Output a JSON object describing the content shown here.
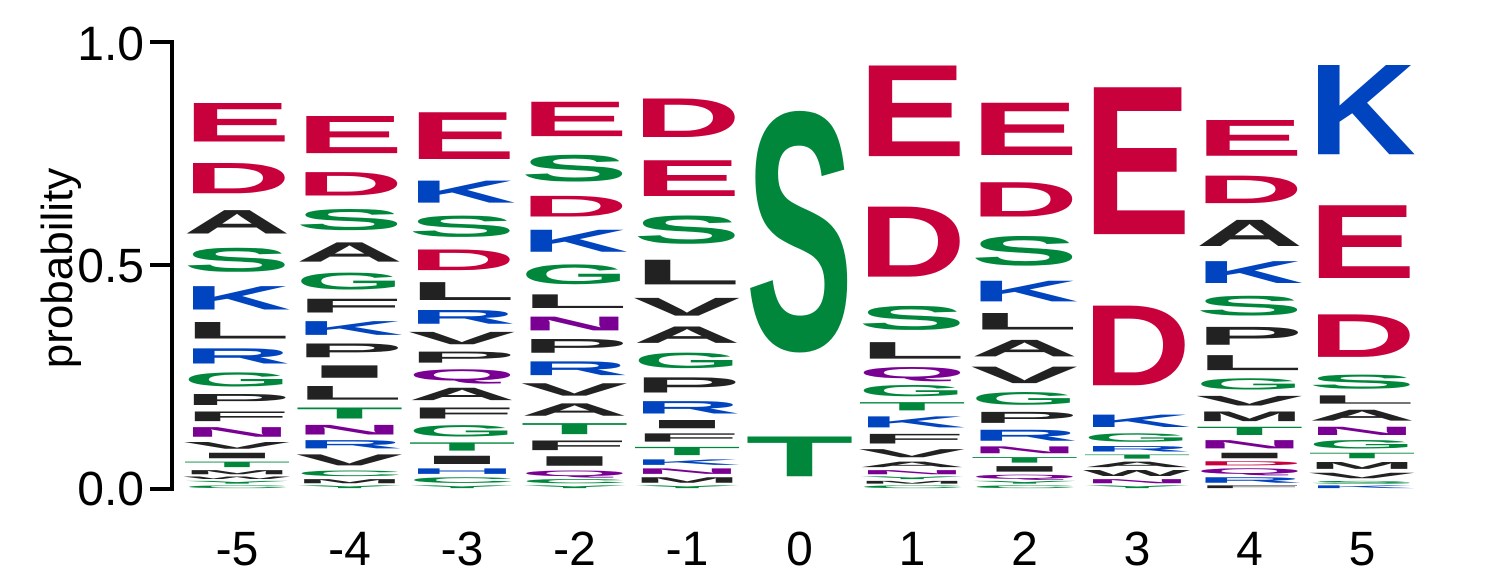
{
  "chart_data": {
    "type": "sequence-logo",
    "ylabel": "probability",
    "ylim": [
      0.0,
      1.0
    ],
    "yticks": [
      "0.0",
      "0.5",
      "1.0"
    ],
    "yticks_values": [
      0.0,
      0.5,
      1.0
    ],
    "categories": [
      "-5",
      "-4",
      "-3",
      "-2",
      "-1",
      "0",
      "1",
      "2",
      "3",
      "4",
      "5"
    ],
    "colors": {
      "acidic": "#c8003c",
      "polar": "#00873c",
      "basic": "#0044c0",
      "hydrophobic": "#222222",
      "amide": "#7a0094"
    },
    "residue_class": {
      "D": "acidic",
      "E": "acidic",
      "S": "polar",
      "T": "polar",
      "G": "polar",
      "Y": "polar",
      "C": "polar",
      "K": "basic",
      "R": "basic",
      "H": "basic",
      "A": "hydrophobic",
      "V": "hydrophobic",
      "L": "hydrophobic",
      "I": "hydrophobic",
      "P": "hydrophobic",
      "F": "hydrophobic",
      "M": "hydrophobic",
      "W": "hydrophobic",
      "N": "amide",
      "Q": "amide"
    },
    "positions": [
      {
        "pos": "-5",
        "letters": [
          {
            "l": "C",
            "p": 0.01
          },
          {
            "l": "Y",
            "p": 0.01
          },
          {
            "l": "W",
            "p": 0.01
          },
          {
            "l": "M",
            "p": 0.015
          },
          {
            "l": "T",
            "p": 0.02
          },
          {
            "l": "I",
            "p": 0.02
          },
          {
            "l": "V",
            "p": 0.025
          },
          {
            "l": "N",
            "p": 0.035
          },
          {
            "l": "F",
            "p": 0.035
          },
          {
            "l": "P",
            "p": 0.04
          },
          {
            "l": "G",
            "p": 0.05
          },
          {
            "l": "R",
            "p": 0.055
          },
          {
            "l": "L",
            "p": 0.06
          },
          {
            "l": "K",
            "p": 0.085
          },
          {
            "l": "S",
            "p": 0.085
          },
          {
            "l": "A",
            "p": 0.085
          },
          {
            "l": "D",
            "p": 0.11
          },
          {
            "l": "E",
            "p": 0.14
          }
        ]
      },
      {
        "pos": "-4",
        "letters": [
          {
            "l": "Y",
            "p": 0.01
          },
          {
            "l": "M",
            "p": 0.015
          },
          {
            "l": "C",
            "p": 0.02
          },
          {
            "l": "V",
            "p": 0.04
          },
          {
            "l": "R",
            "p": 0.03
          },
          {
            "l": "N",
            "p": 0.035
          },
          {
            "l": "T",
            "p": 0.04
          },
          {
            "l": "L",
            "p": 0.05
          },
          {
            "l": "I",
            "p": 0.045
          },
          {
            "l": "P",
            "p": 0.05
          },
          {
            "l": "K",
            "p": 0.05
          },
          {
            "l": "F",
            "p": 0.05
          },
          {
            "l": "G",
            "p": 0.06
          },
          {
            "l": "A",
            "p": 0.07
          },
          {
            "l": "S",
            "p": 0.075
          },
          {
            "l": "D",
            "p": 0.085
          },
          {
            "l": "E",
            "p": 0.135
          }
        ]
      },
      {
        "pos": "-3",
        "letters": [
          {
            "l": "Y",
            "p": 0.01
          },
          {
            "l": "C",
            "p": 0.02
          },
          {
            "l": "H",
            "p": 0.02
          },
          {
            "l": "I",
            "p": 0.03
          },
          {
            "l": "T",
            "p": 0.03
          },
          {
            "l": "G",
            "p": 0.04
          },
          {
            "l": "F",
            "p": 0.04
          },
          {
            "l": "A",
            "p": 0.045
          },
          {
            "l": "Q",
            "p": 0.04
          },
          {
            "l": "P",
            "p": 0.04
          },
          {
            "l": "V",
            "p": 0.045
          },
          {
            "l": "R",
            "p": 0.05
          },
          {
            "l": "L",
            "p": 0.065
          },
          {
            "l": "D",
            "p": 0.075
          },
          {
            "l": "S",
            "p": 0.075
          },
          {
            "l": "K",
            "p": 0.08
          },
          {
            "l": "E",
            "p": 0.17
          }
        ]
      },
      {
        "pos": "-2",
        "letters": [
          {
            "l": "Y",
            "p": 0.01
          },
          {
            "l": "C",
            "p": 0.015
          },
          {
            "l": "Q",
            "p": 0.02
          },
          {
            "l": "I",
            "p": 0.035
          },
          {
            "l": "F",
            "p": 0.035
          },
          {
            "l": "T",
            "p": 0.04
          },
          {
            "l": "A",
            "p": 0.045
          },
          {
            "l": "V",
            "p": 0.045
          },
          {
            "l": "R",
            "p": 0.05
          },
          {
            "l": "P",
            "p": 0.05
          },
          {
            "l": "N",
            "p": 0.05
          },
          {
            "l": "L",
            "p": 0.05
          },
          {
            "l": "G",
            "p": 0.07
          },
          {
            "l": "K",
            "p": 0.08
          },
          {
            "l": "D",
            "p": 0.075
          },
          {
            "l": "S",
            "p": 0.095
          },
          {
            "l": "E",
            "p": 0.125
          }
        ]
      },
      {
        "pos": "-1",
        "letters": [
          {
            "l": "Y",
            "p": 0.01
          },
          {
            "l": "M",
            "p": 0.02
          },
          {
            "l": "N",
            "p": 0.02
          },
          {
            "l": "K",
            "p": 0.02
          },
          {
            "l": "T",
            "p": 0.03
          },
          {
            "l": "F",
            "p": 0.03
          },
          {
            "l": "I",
            "p": 0.03
          },
          {
            "l": "R",
            "p": 0.045
          },
          {
            "l": "P",
            "p": 0.055
          },
          {
            "l": "G",
            "p": 0.055
          },
          {
            "l": "A",
            "p": 0.06
          },
          {
            "l": "V",
            "p": 0.065
          },
          {
            "l": "L",
            "p": 0.09
          },
          {
            "l": "S",
            "p": 0.1
          },
          {
            "l": "E",
            "p": 0.13
          },
          {
            "l": "D",
            "p": 0.14
          }
        ]
      },
      {
        "pos": "0",
        "letters": [
          {
            "l": "T",
            "p": 0.145
          },
          {
            "l": "S",
            "p": 0.855
          }
        ]
      },
      {
        "pos": "1",
        "letters": [
          {
            "l": "C",
            "p": 0.01
          },
          {
            "l": "M",
            "p": 0.01
          },
          {
            "l": "Y",
            "p": 0.01
          },
          {
            "l": "N",
            "p": 0.015
          },
          {
            "l": "A",
            "p": 0.02
          },
          {
            "l": "V",
            "p": 0.03
          },
          {
            "l": "F",
            "p": 0.035
          },
          {
            "l": "K",
            "p": 0.04
          },
          {
            "l": "T",
            "p": 0.03
          },
          {
            "l": "G",
            "p": 0.04
          },
          {
            "l": "Q",
            "p": 0.04
          },
          {
            "l": "L",
            "p": 0.06
          },
          {
            "l": "S",
            "p": 0.085
          },
          {
            "l": "D",
            "p": 0.255
          },
          {
            "l": "E",
            "p": 0.33
          }
        ]
      },
      {
        "pos": "2",
        "letters": [
          {
            "l": "C",
            "p": 0.01
          },
          {
            "l": "Y",
            "p": 0.01
          },
          {
            "l": "Q",
            "p": 0.015
          },
          {
            "l": "I",
            "p": 0.02
          },
          {
            "l": "T",
            "p": 0.02
          },
          {
            "l": "N",
            "p": 0.025
          },
          {
            "l": "R",
            "p": 0.04
          },
          {
            "l": "P",
            "p": 0.04
          },
          {
            "l": "G",
            "p": 0.045
          },
          {
            "l": "V",
            "p": 0.06
          },
          {
            "l": "A",
            "p": 0.06
          },
          {
            "l": "L",
            "p": 0.06
          },
          {
            "l": "K",
            "p": 0.075
          },
          {
            "l": "S",
            "p": 0.105
          },
          {
            "l": "D",
            "p": 0.125
          },
          {
            "l": "E",
            "p": 0.19
          }
        ]
      },
      {
        "pos": "3",
        "letters": [
          {
            "l": "Y",
            "p": 0.01
          },
          {
            "l": "N",
            "p": 0.015
          },
          {
            "l": "W",
            "p": 0.02
          },
          {
            "l": "A",
            "p": 0.02
          },
          {
            "l": "T",
            "p": 0.015
          },
          {
            "l": "R",
            "p": 0.02
          },
          {
            "l": "G",
            "p": 0.03
          },
          {
            "l": "K",
            "p": 0.045
          },
          {
            "l": "D",
            "p": 0.29
          },
          {
            "l": "E",
            "p": 0.535
          }
        ]
      },
      {
        "pos": "4",
        "letters": [
          {
            "l": "F",
            "p": 0.01
          },
          {
            "l": "R",
            "p": 0.02
          },
          {
            "l": "Q",
            "p": 0.02
          },
          {
            "l": "D",
            "p": 0.015
          },
          {
            "l": "I",
            "p": 0.02
          },
          {
            "l": "N",
            "p": 0.03
          },
          {
            "l": "T",
            "p": 0.03
          },
          {
            "l": "M",
            "p": 0.035
          },
          {
            "l": "V",
            "p": 0.035
          },
          {
            "l": "G",
            "p": 0.04
          },
          {
            "l": "L",
            "p": 0.055
          },
          {
            "l": "P",
            "p": 0.065
          },
          {
            "l": "S",
            "p": 0.07
          },
          {
            "l": "K",
            "p": 0.08
          },
          {
            "l": "A",
            "p": 0.095
          },
          {
            "l": "D",
            "p": 0.1
          },
          {
            "l": "E",
            "p": 0.13
          }
        ]
      },
      {
        "pos": "5",
        "letters": [
          {
            "l": "K",
            "p": 0.01
          },
          {
            "l": "S",
            "p": 0.01
          },
          {
            "l": "V",
            "p": 0.02
          },
          {
            "l": "M",
            "p": 0.025
          },
          {
            "l": "T",
            "p": 0.02
          },
          {
            "l": "G",
            "p": 0.03
          },
          {
            "l": "N",
            "p": 0.03
          },
          {
            "l": "A",
            "p": 0.04
          },
          {
            "l": "L",
            "p": 0.03
          },
          {
            "l": "S",
            "p": 0.05
          },
          {
            "l": "D",
            "p": 0.155
          },
          {
            "l": "E",
            "p": 0.265
          },
          {
            "l": "K",
            "p": 0.325
          }
        ]
      }
    ]
  }
}
